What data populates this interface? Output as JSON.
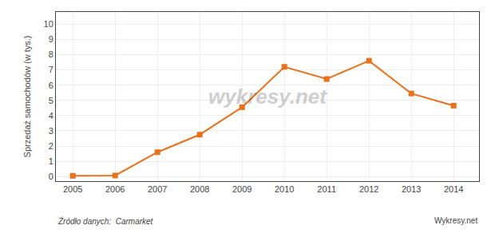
{
  "chart_data": {
    "type": "line",
    "ylabel": "Sprzedaż samochodów (w tys.)",
    "x": [
      2005,
      2006,
      2007,
      2008,
      2009,
      2010,
      2011,
      2012,
      2013,
      2014
    ],
    "values": [
      0.05,
      0.07,
      1.6,
      2.75,
      4.55,
      7.2,
      6.4,
      7.6,
      5.45,
      4.65
    ],
    "color": "#E8711A",
    "marker": "square",
    "xlim": [
      2004.6,
      2014.6
    ],
    "xticks": [
      2005,
      2006,
      2007,
      2008,
      2009,
      2010,
      2011,
      2012,
      2013,
      2014
    ],
    "ylim": [
      -0.3,
      10.8
    ],
    "yticks": [
      0,
      1,
      2,
      3,
      4,
      5,
      6,
      7,
      8,
      9,
      10
    ],
    "grid": true,
    "annotations": [
      "wykresy.net",
      "Źródło danych:  Carmarket",
      "Wykresy.net"
    ]
  }
}
